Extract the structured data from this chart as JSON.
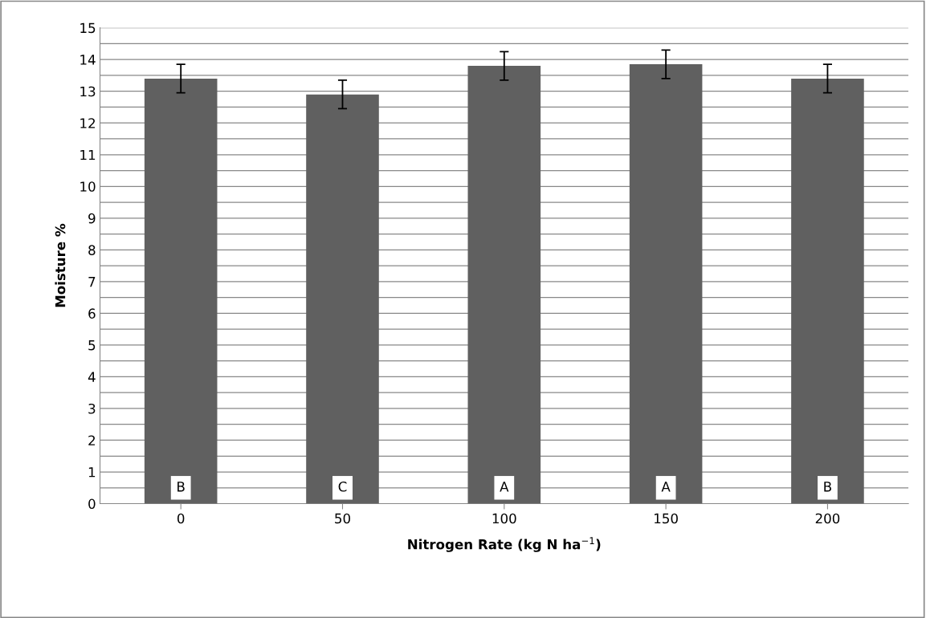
{
  "chart_data": {
    "type": "bar",
    "xlabel": "Nitrogen Rate (kg N ha$^{−1}$)",
    "ylabel": "Moisture %",
    "categories": [
      "0",
      "50",
      "100",
      "150",
      "200"
    ],
    "values": [
      13.4,
      12.9,
      13.8,
      13.85,
      13.4
    ],
    "errors": [
      0.45,
      0.45,
      0.45,
      0.45,
      0.45
    ],
    "color": "#606060",
    "ylim": [
      0,
      15
    ],
    "yticks": [
      0,
      {
        "value": 0.5,
        "label": null
      },
      1,
      {
        "value": 1.5,
        "label": null
      },
      2,
      {
        "value": 2.5,
        "label": null
      },
      3,
      {
        "value": 3.5,
        "label": null
      },
      4,
      {
        "value": 4.5,
        "label": null
      },
      5,
      {
        "value": 5.5,
        "label": null
      },
      6,
      {
        "value": 6.5,
        "label": null
      },
      7,
      {
        "value": 7.5,
        "label": null
      },
      8,
      {
        "value": 8.5,
        "label": null
      },
      9,
      {
        "value": 9.5,
        "label": null
      },
      10,
      {
        "value": 10.5,
        "label": null
      },
      11,
      {
        "value": 11.5,
        "label": null
      },
      12,
      {
        "value": 12.5,
        "label": null
      },
      13,
      {
        "value": 13.5,
        "label": null
      },
      14,
      {
        "value": 14.5,
        "label": null
      },
      15
    ],
    "grid": "y",
    "annotations": [
      {
        "text": "B",
        "x": "0",
        "y": 0.5
      },
      {
        "text": "C",
        "x": "50",
        "y": 0.5
      },
      {
        "text": "A",
        "x": "100",
        "y": 0.5
      },
      {
        "text": "A",
        "x": "150",
        "y": 0.5
      },
      {
        "text": "B",
        "x": "200",
        "y": 0.5
      }
    ]
  }
}
